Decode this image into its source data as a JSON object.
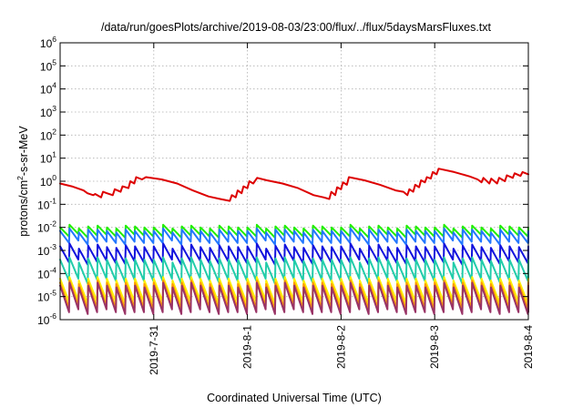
{
  "chart_data": {
    "type": "line",
    "title": "/data/run/goesPlots/archive/2019-08-03/23:00/flux/../flux/5daysMarsFluxes.txt",
    "xlabel": "Coordinated Universal Time (UTC)",
    "ylabel": {
      "base": "protons/cm",
      "sup": "2",
      "rest": "-s-sr-MeV"
    },
    "y_scale": "log",
    "ylim": [
      1e-06,
      1000000.0
    ],
    "xlim": [
      "2019-07-30T00:00",
      "2019-08-04T00:00"
    ],
    "grid": true,
    "x_ticks": [
      {
        "date": "2019-07-31",
        "label": "2019-7-31"
      },
      {
        "date": "2019-08-01",
        "label": "2019-8-1"
      },
      {
        "date": "2019-08-02",
        "label": "2019-8-2"
      },
      {
        "date": "2019-08-03",
        "label": "2019-8-3"
      },
      {
        "date": "2019-08-04",
        "label": "2019-8-4"
      }
    ],
    "y_ticks": [
      {
        "base": "10",
        "exp": "-6",
        "value": 1e-06
      },
      {
        "base": "10",
        "exp": "-5",
        "value": 1e-05
      },
      {
        "base": "10",
        "exp": "-4",
        "value": 0.0001
      },
      {
        "base": "10",
        "exp": "-3",
        "value": 0.001
      },
      {
        "base": "10",
        "exp": "-2",
        "value": 0.01
      },
      {
        "base": "10",
        "exp": "-1",
        "value": 0.1
      },
      {
        "base": "10",
        "exp": "0",
        "value": 1
      },
      {
        "base": "10",
        "exp": "1",
        "value": 10
      },
      {
        "base": "10",
        "exp": "2",
        "value": 100
      },
      {
        "base": "10",
        "exp": "3",
        "value": 1000
      },
      {
        "base": "10",
        "exp": "4",
        "value": 10000
      },
      {
        "base": "10",
        "exp": "5",
        "value": 100000
      },
      {
        "base": "10",
        "exp": "6",
        "value": 1000000
      }
    ],
    "series": [
      {
        "color": "#dd0000",
        "points": [
          [
            "2019-07-30T00:00",
            0.8
          ],
          [
            "2019-07-30T03:00",
            0.6
          ],
          [
            "2019-07-30T06:00",
            0.4
          ],
          [
            "2019-07-30T07:00",
            0.3
          ],
          [
            "2019-07-30T08:30",
            0.25
          ],
          [
            "2019-07-30T09:00",
            0.28
          ],
          [
            "2019-07-30T10:30",
            0.2
          ],
          [
            "2019-07-30T11:00",
            0.35
          ],
          [
            "2019-07-30T12:00",
            0.3
          ],
          [
            "2019-07-30T13:30",
            0.25
          ],
          [
            "2019-07-30T14:00",
            0.45
          ],
          [
            "2019-07-30T15:30",
            0.35
          ],
          [
            "2019-07-30T16:00",
            0.6
          ],
          [
            "2019-07-30T17:30",
            0.5
          ],
          [
            "2019-07-30T18:00",
            1.0
          ],
          [
            "2019-07-30T19:00",
            0.8
          ],
          [
            "2019-07-30T19:30",
            1.5
          ],
          [
            "2019-07-30T21:00",
            1.2
          ],
          [
            "2019-07-30T22:00",
            1.5
          ],
          [
            "2019-07-31T02:00",
            1.2
          ],
          [
            "2019-07-31T06:00",
            0.8
          ],
          [
            "2019-07-31T10:00",
            0.4
          ],
          [
            "2019-07-31T14:00",
            0.22
          ],
          [
            "2019-07-31T17:00",
            0.17
          ],
          [
            "2019-07-31T19:30",
            0.14
          ],
          [
            "2019-07-31T20:00",
            0.25
          ],
          [
            "2019-07-31T21:00",
            0.2
          ],
          [
            "2019-07-31T21:30",
            0.4
          ],
          [
            "2019-07-31T22:30",
            0.3
          ],
          [
            "2019-07-31T23:00",
            0.6
          ],
          [
            "2019-08-01T00:00",
            0.5
          ],
          [
            "2019-08-01T00:30",
            1.0
          ],
          [
            "2019-08-01T01:30",
            0.8
          ],
          [
            "2019-08-01T02:30",
            1.4
          ],
          [
            "2019-08-01T05:00",
            1.1
          ],
          [
            "2019-08-01T09:00",
            0.8
          ],
          [
            "2019-08-01T13:00",
            0.5
          ],
          [
            "2019-08-01T17:00",
            0.25
          ],
          [
            "2019-08-01T19:30",
            0.2
          ],
          [
            "2019-08-01T21:00",
            0.17
          ],
          [
            "2019-08-01T21:30",
            0.35
          ],
          [
            "2019-08-01T22:30",
            0.25
          ],
          [
            "2019-08-01T23:00",
            0.55
          ],
          [
            "2019-08-02T00:00",
            0.45
          ],
          [
            "2019-08-02T00:30",
            0.9
          ],
          [
            "2019-08-02T01:30",
            0.7
          ],
          [
            "2019-08-02T02:00",
            1.5
          ],
          [
            "2019-08-02T06:00",
            1.1
          ],
          [
            "2019-08-02T10:00",
            0.7
          ],
          [
            "2019-08-02T14:00",
            0.4
          ],
          [
            "2019-08-02T16:00",
            0.35
          ],
          [
            "2019-08-02T17:00",
            0.25
          ],
          [
            "2019-08-02T17:30",
            0.45
          ],
          [
            "2019-08-02T18:30",
            0.35
          ],
          [
            "2019-08-02T19:00",
            0.7
          ],
          [
            "2019-08-02T20:00",
            0.55
          ],
          [
            "2019-08-02T20:30",
            1.1
          ],
          [
            "2019-08-02T21:30",
            0.9
          ],
          [
            "2019-08-02T22:00",
            1.5
          ],
          [
            "2019-08-02T23:00",
            1.3
          ],
          [
            "2019-08-02T23:30",
            2.5
          ],
          [
            "2019-08-03T00:30",
            2.0
          ],
          [
            "2019-08-03T01:00",
            3.5
          ],
          [
            "2019-08-03T05:00",
            2.5
          ],
          [
            "2019-08-03T09:00",
            1.6
          ],
          [
            "2019-08-03T11:00",
            1.2
          ],
          [
            "2019-08-03T12:00",
            0.9
          ],
          [
            "2019-08-03T12:30",
            1.4
          ],
          [
            "2019-08-03T14:00",
            0.8
          ],
          [
            "2019-08-03T14:30",
            1.3
          ],
          [
            "2019-08-03T16:00",
            0.8
          ],
          [
            "2019-08-03T16:30",
            1.4
          ],
          [
            "2019-08-03T18:00",
            1.0
          ],
          [
            "2019-08-03T18:30",
            1.8
          ],
          [
            "2019-08-03T20:00",
            1.4
          ],
          [
            "2019-08-03T20:30",
            2.2
          ],
          [
            "2019-08-03T22:00",
            1.7
          ],
          [
            "2019-08-03T22:30",
            2.5
          ],
          [
            "2019-08-04T00:00",
            2.0
          ]
        ]
      },
      {
        "color": "#22ee00",
        "periodic": {
          "start": "2019-07-30T00:00",
          "step_hours": 2.4,
          "peak": [
            0.01,
            0.013,
            0.009,
            0.011,
            0.012,
            0.01,
            0.009,
            0.012,
            0.011,
            0.01
          ],
          "trough": 0.4
        }
      },
      {
        "color": "#2277ff",
        "periodic": {
          "start": "2019-07-30T00:00",
          "step_hours": 2.4,
          "peak": [
            0.007,
            0.009,
            0.006,
            0.008,
            0.008,
            0.007,
            0.006,
            0.008,
            0.007,
            0.007
          ],
          "trough": 0.3
        }
      },
      {
        "color": "#1111dd",
        "periodic": {
          "start": "2019-07-30T00:00",
          "step_hours": 2.4,
          "peak": [
            0.0015,
            0.002,
            0.0012,
            0.0016,
            0.0018,
            0.0014,
            0.0013,
            0.0017,
            0.0015,
            0.0014
          ],
          "trough": 0.2
        }
      },
      {
        "color": "#22ccaa",
        "periodic": {
          "start": "2019-07-30T00:00",
          "step_hours": 2.4,
          "peak": [
            0.0004,
            0.0005,
            0.0003,
            0.00045,
            0.0005,
            0.0004,
            0.00035,
            0.00045,
            0.0004,
            0.0004
          ],
          "trough": 0.12
        }
      },
      {
        "color": "#ffee00",
        "periodic": {
          "start": "2019-07-30T00:00",
          "step_hours": 2.4,
          "peak": [
            6e-05,
            7e-05,
            5e-05,
            6e-05,
            7e-05,
            6e-05,
            5e-05,
            6e-05,
            6e-05,
            5e-05
          ],
          "trough": 0.1
        }
      },
      {
        "color": "#ff9900",
        "periodic": {
          "start": "2019-07-30T00:00",
          "step_hours": 2.4,
          "peak": [
            4e-05,
            5e-05,
            3.5e-05,
            4e-05,
            5e-05,
            4e-05,
            3.5e-05,
            4e-05,
            4e-05,
            3.5e-05
          ],
          "trough": 0.08
        }
      },
      {
        "color": "#993366",
        "periodic": {
          "start": "2019-07-30T00:00",
          "step_hours": 2.4,
          "peak": [
            3e-05,
            4e-05,
            2.5e-05,
            3e-05,
            4e-05,
            3e-05,
            2.5e-05,
            3e-05,
            3e-05,
            2.5e-05
          ],
          "trough": 0.07
        }
      }
    ]
  }
}
